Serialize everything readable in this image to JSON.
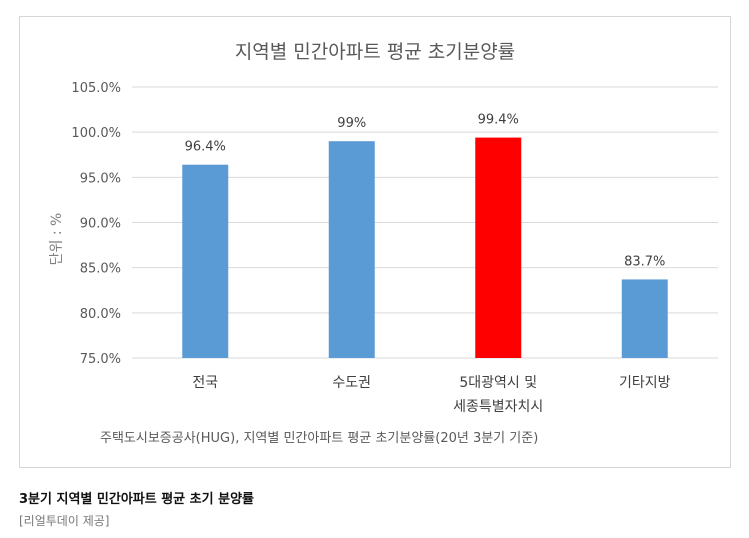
{
  "chart_data": {
    "type": "bar",
    "title": "지역별 민간아파트 평균 초기분양률",
    "ylabel": "단위 : %",
    "xlabel": "",
    "categories": [
      "전국",
      "수도권",
      "5대광역시 및|세종특별자치시",
      "기타지방"
    ],
    "values": [
      96.4,
      99.0,
      99.4,
      83.7
    ],
    "data_labels": [
      "96.4%",
      "99%",
      "99.4%",
      "83.7%"
    ],
    "ylim": [
      75,
      105
    ],
    "yticks": [
      75,
      80,
      85,
      90,
      95,
      100,
      105
    ],
    "ytick_labels": [
      "75.0%",
      "80.0%",
      "85.0%",
      "90.0%",
      "95.0%",
      "100.0%",
      "105.0%"
    ],
    "grid": true,
    "legend": "none",
    "colors": {
      "default": "#5b9bd5",
      "highlight": "#ff0000",
      "grid": "#d9d9d9"
    },
    "highlight_index": 2,
    "source_note": "주택도시보증공사(HUG), 지역별 민간아파트 평균 초기분양률(20년 3분기 기준)"
  },
  "caption": {
    "title": "3분기 지역별 민간아파트 평균 초기 분양률",
    "credit": "[리얼투데이 제공]"
  }
}
